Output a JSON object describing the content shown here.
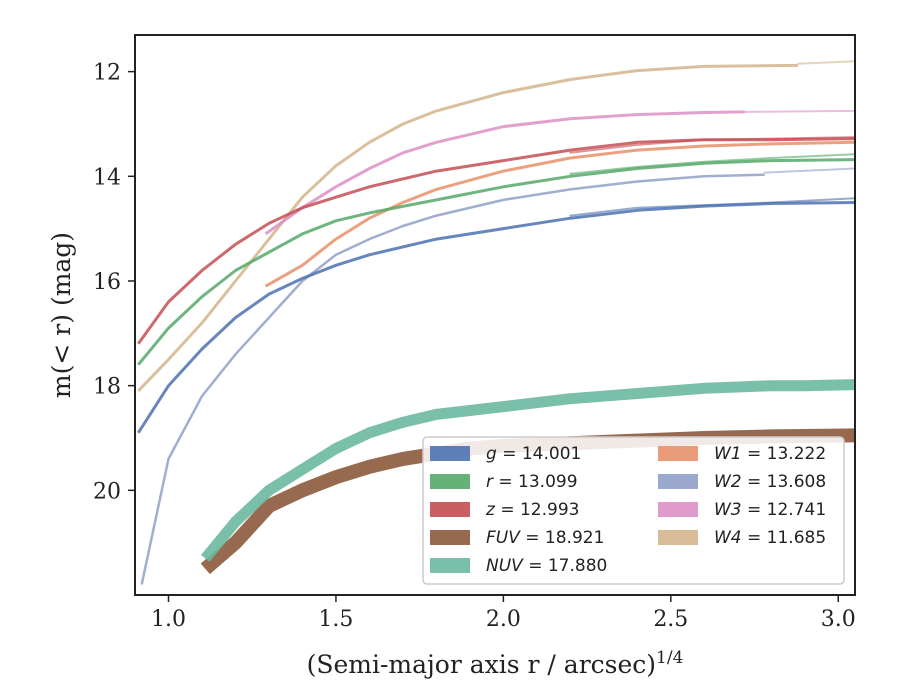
{
  "chart_data": {
    "type": "line",
    "xlabel": "(Semi-major axis r / arcsec)",
    "xlabel_exponent": "1/4",
    "ylabel": "m(< r) (mag)",
    "xlim": [
      0.9,
      3.05
    ],
    "ylim": [
      22.0,
      11.3
    ],
    "y_inverted": true,
    "grid": false,
    "legend_placement": "lower-right",
    "x_ticks": [
      "1.0",
      "1.5",
      "2.0",
      "2.5",
      "3.0"
    ],
    "x_tick_values": [
      1.0,
      1.5,
      2.0,
      2.5,
      3.0
    ],
    "y_ticks": [
      "12",
      "14",
      "16",
      "18",
      "20"
    ],
    "y_tick_values": [
      12,
      14,
      16,
      18,
      20
    ],
    "series": [
      {
        "band": "g",
        "value": "14.001",
        "color": "#4c72b0",
        "x": [
          0.91,
          1.0,
          1.1,
          1.2,
          1.3,
          1.4,
          1.5,
          1.6,
          1.8,
          2.0,
          2.2,
          2.4,
          2.6,
          2.8,
          3.05
        ],
        "y": [
          18.9,
          18.0,
          17.3,
          16.7,
          16.25,
          15.95,
          15.7,
          15.5,
          15.2,
          15.0,
          14.8,
          14.65,
          14.57,
          14.52,
          14.5
        ],
        "x2": [
          2.2,
          2.4,
          2.6,
          2.8,
          3.05
        ],
        "y2": [
          14.75,
          14.6,
          14.55,
          14.5,
          14.42
        ]
      },
      {
        "band": "r",
        "value": "13.099",
        "color": "#55a868",
        "x": [
          0.91,
          1.0,
          1.1,
          1.2,
          1.3,
          1.4,
          1.5,
          1.6,
          1.8,
          2.0,
          2.2,
          2.4,
          2.6,
          2.8,
          3.05
        ],
        "y": [
          17.6,
          16.9,
          16.3,
          15.8,
          15.45,
          15.1,
          14.85,
          14.7,
          14.45,
          14.2,
          14.0,
          13.85,
          13.75,
          13.7,
          13.68
        ],
        "x2": [
          2.2,
          2.4,
          2.6,
          2.8,
          3.05
        ],
        "y2": [
          13.95,
          13.82,
          13.72,
          13.65,
          13.58
        ]
      },
      {
        "band": "z",
        "value": "12.993",
        "color": "#c44e52",
        "x": [
          0.91,
          1.0,
          1.1,
          1.2,
          1.3,
          1.4,
          1.5,
          1.6,
          1.8,
          2.0,
          2.2,
          2.4,
          2.6,
          2.8,
          3.05
        ],
        "y": [
          17.2,
          16.4,
          15.8,
          15.3,
          14.9,
          14.6,
          14.4,
          14.2,
          13.9,
          13.7,
          13.5,
          13.35,
          13.3,
          13.3,
          13.28
        ],
        "x2": [
          2.2,
          2.4,
          2.6,
          2.8,
          3.05
        ],
        "y2": [
          13.55,
          13.4,
          13.3,
          13.28,
          13.25
        ]
      },
      {
        "band": "FUV",
        "value": "18.921",
        "color": "#8c5a3c",
        "x": [
          1.11,
          1.2,
          1.3,
          1.4,
          1.5,
          1.6,
          1.7,
          1.8,
          1.9,
          2.0,
          2.2,
          2.4,
          2.6,
          2.8,
          3.05
        ],
        "y": [
          21.5,
          21.0,
          20.3,
          20.0,
          19.75,
          19.55,
          19.4,
          19.3,
          19.2,
          19.15,
          19.1,
          19.05,
          19.0,
          18.97,
          18.95
        ]
      },
      {
        "band": "NUV",
        "value": "17.880",
        "color": "#6bb8a0",
        "x": [
          1.11,
          1.2,
          1.3,
          1.4,
          1.5,
          1.6,
          1.7,
          1.8,
          2.0,
          2.2,
          2.4,
          2.6,
          2.8,
          2.9,
          3.05
        ],
        "y": [
          21.3,
          20.6,
          20.0,
          19.6,
          19.2,
          18.9,
          18.7,
          18.55,
          18.4,
          18.25,
          18.15,
          18.05,
          18.0,
          18.0,
          17.98
        ]
      },
      {
        "band": "W1",
        "value": "13.222",
        "color": "#e8906a",
        "x": [
          1.29,
          1.4,
          1.5,
          1.6,
          1.7,
          1.8,
          2.0,
          2.2,
          2.4,
          2.6,
          2.8,
          3.05
        ],
        "y": [
          16.1,
          15.7,
          15.2,
          14.8,
          14.5,
          14.25,
          13.9,
          13.65,
          13.5,
          13.42,
          13.38,
          13.35
        ]
      },
      {
        "band": "W2",
        "value": "13.608",
        "color": "#8fa0c8",
        "x": [
          0.92,
          1.0,
          1.1,
          1.2,
          1.3,
          1.4,
          1.5,
          1.6,
          1.7,
          1.8,
          2.0,
          2.2,
          2.4,
          2.6,
          2.78
        ],
        "y": [
          21.8,
          19.4,
          18.2,
          17.4,
          16.7,
          16.0,
          15.5,
          15.2,
          14.95,
          14.75,
          14.45,
          14.25,
          14.1,
          14.0,
          13.97
        ],
        "x2": [
          2.78,
          3.05
        ],
        "y2": [
          13.93,
          13.85
        ]
      },
      {
        "band": "W3",
        "value": "12.741",
        "color": "#dd8fc6",
        "x": [
          1.29,
          1.4,
          1.5,
          1.6,
          1.7,
          1.8,
          2.0,
          2.2,
          2.4,
          2.6,
          2.72
        ],
        "y": [
          15.1,
          14.6,
          14.2,
          13.85,
          13.55,
          13.35,
          13.05,
          12.9,
          12.82,
          12.78,
          12.77
        ],
        "x2": [
          2.72,
          3.05
        ],
        "y2": [
          12.77,
          12.75
        ]
      },
      {
        "band": "W4",
        "value": "11.685",
        "color": "#d4b48c",
        "x": [
          0.91,
          1.0,
          1.1,
          1.2,
          1.3,
          1.4,
          1.5,
          1.6,
          1.7,
          1.8,
          2.0,
          2.2,
          2.4,
          2.6,
          2.88
        ],
        "y": [
          18.1,
          17.5,
          16.8,
          16.0,
          15.2,
          14.4,
          13.8,
          13.35,
          13.0,
          12.75,
          12.4,
          12.15,
          11.98,
          11.9,
          11.88
        ],
        "x2": [
          2.88,
          3.05
        ],
        "y2": [
          11.85,
          11.8
        ]
      }
    ]
  }
}
